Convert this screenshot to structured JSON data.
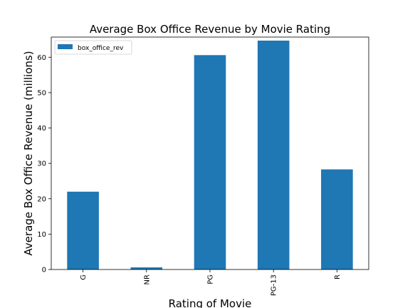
{
  "chart_data": {
    "type": "bar",
    "title": "Average Box Office Revenue by Movie Rating",
    "xlabel": "Rating of Movie",
    "ylabel": "Average Box Office Revenue (millions)",
    "categories": [
      "G",
      "NR",
      "PG",
      "PG-13",
      "R"
    ],
    "series": [
      {
        "name": "box_office_rev",
        "values": [
          22.0,
          0.6,
          60.6,
          64.7,
          28.3
        ]
      }
    ],
    "ylim": [
      0,
      65.7
    ],
    "yticks": [
      0,
      10,
      20,
      30,
      40,
      50,
      60
    ],
    "legend": "top-left",
    "grid": false,
    "bar_color": "#1f77b4"
  }
}
